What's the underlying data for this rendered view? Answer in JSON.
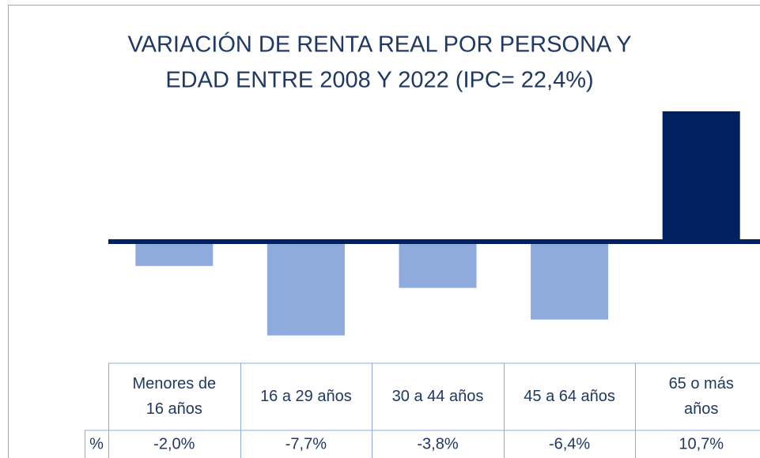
{
  "chart_data": {
    "type": "bar",
    "title_lines": [
      "VARIACIÓN DE RENTA REAL POR PERSONA Y",
      "EDAD ENTRE 2008 Y 2022 (IPC= 22,4%)"
    ],
    "categories": [
      [
        "Menores de",
        "16 años"
      ],
      [
        "16 a 29 años"
      ],
      [
        "30 a 44 años"
      ],
      [
        "45 a 64 años"
      ],
      [
        "65 o más",
        "años"
      ]
    ],
    "values": [
      -2.0,
      -7.7,
      -3.8,
      -6.4,
      10.7
    ],
    "value_labels": [
      "-2,0%",
      "-7,7%",
      "-3,8%",
      "-6,4%",
      "10,7%"
    ],
    "table_row_label": "%",
    "color": "#002060",
    "negative_color": "#8faadc"
  }
}
